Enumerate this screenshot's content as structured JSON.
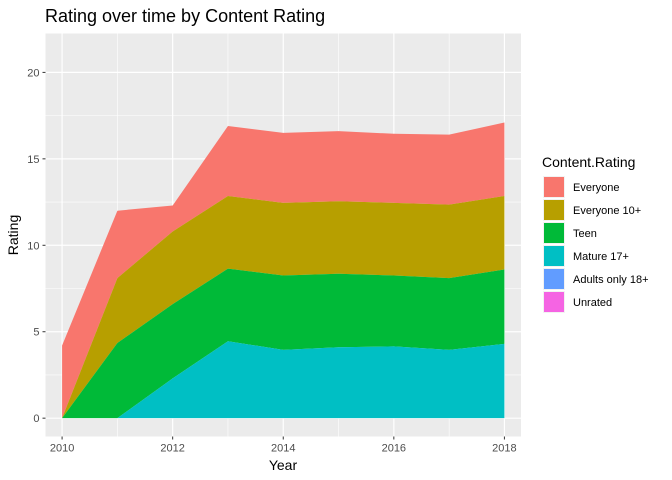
{
  "chart_data": {
    "type": "area",
    "stacked": true,
    "title": "Rating over time by Content Rating",
    "xlabel": "Year",
    "ylabel": "Rating",
    "x": [
      2010,
      2011,
      2012,
      2013,
      2014,
      2015,
      2016,
      2017,
      2018
    ],
    "xlim": [
      2009.7,
      2018.3
    ],
    "ylim": [
      -1.06,
      22.25
    ],
    "xticks": [
      2010,
      2012,
      2014,
      2016,
      2018
    ],
    "yticks": [
      0,
      5,
      10,
      15,
      20
    ],
    "grid": true,
    "legend": {
      "title": "Content.Rating",
      "position": "right"
    },
    "series": [
      {
        "name": "Everyone",
        "color": "#F8766D",
        "values": [
          4.2,
          3.9,
          1.5,
          4.05,
          4.05,
          4.05,
          4.0,
          4.05,
          4.25
        ]
      },
      {
        "name": "Everyone 10+",
        "color": "#B79F00",
        "values": [
          0,
          3.75,
          4.2,
          4.2,
          4.2,
          4.2,
          4.2,
          4.25,
          4.25
        ]
      },
      {
        "name": "Teen",
        "color": "#00BA38",
        "values": [
          0,
          4.35,
          4.3,
          4.2,
          4.3,
          4.25,
          4.1,
          4.15,
          4.3
        ]
      },
      {
        "name": "Mature 17+",
        "color": "#00BFC4",
        "values": [
          0,
          0,
          2.3,
          4.45,
          3.95,
          4.1,
          4.15,
          3.95,
          4.3
        ]
      },
      {
        "name": "Adults only 18+",
        "color": "#619CFF",
        "values": [
          0,
          0,
          0,
          0,
          0,
          0,
          0,
          0,
          0
        ]
      },
      {
        "name": "Unrated",
        "color": "#F564E3",
        "values": [
          0,
          0,
          0,
          0,
          0,
          0,
          0,
          0,
          0
        ]
      }
    ]
  }
}
